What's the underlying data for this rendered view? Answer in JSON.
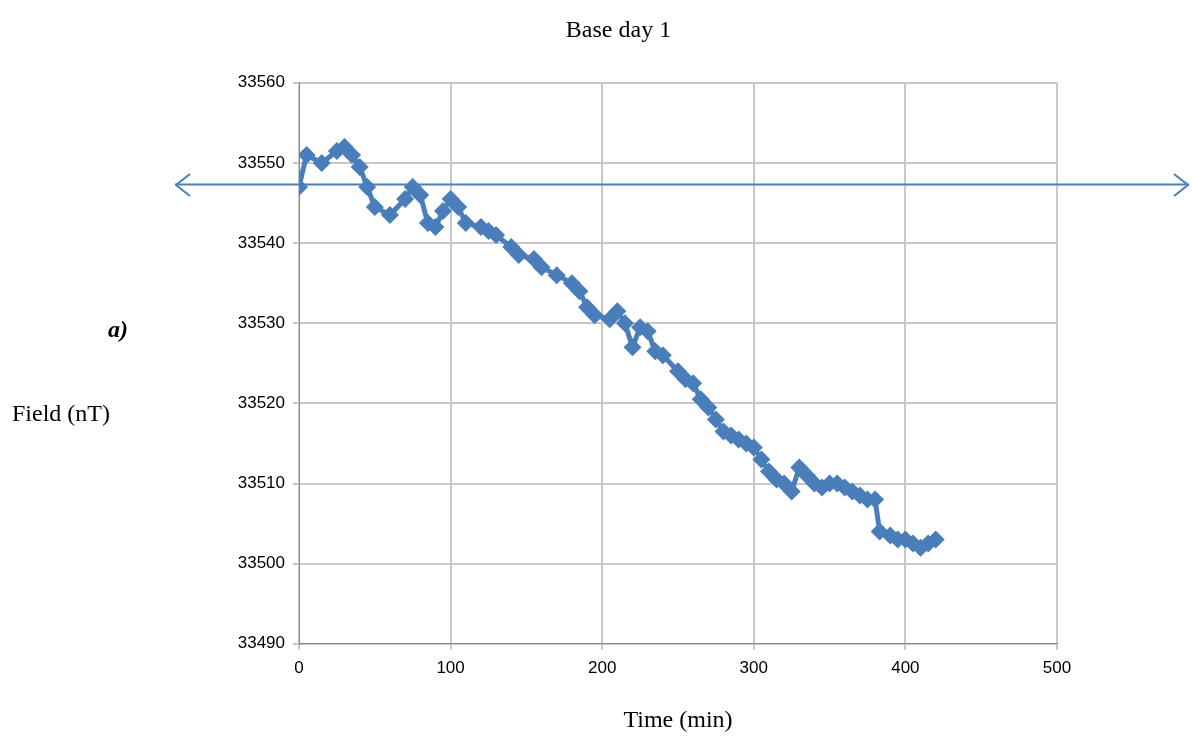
{
  "chart_data": {
    "type": "line",
    "title": "Base day 1",
    "xlabel": "Time (min)",
    "annotations": [
      "a)",
      "Field (nT)"
    ],
    "x": [
      0,
      5,
      15,
      25,
      30,
      35,
      40,
      45,
      50,
      60,
      70,
      75,
      80,
      85,
      90,
      95,
      100,
      105,
      110,
      120,
      125,
      130,
      140,
      145,
      155,
      160,
      170,
      180,
      185,
      190,
      195,
      205,
      210,
      215,
      220,
      225,
      230,
      235,
      240,
      250,
      255,
      260,
      265,
      270,
      275,
      280,
      285,
      290,
      295,
      300,
      305,
      310,
      315,
      320,
      325,
      330,
      335,
      340,
      345,
      350,
      355,
      360,
      365,
      370,
      375,
      380,
      383,
      390,
      395,
      400,
      405,
      410,
      415,
      420
    ],
    "series": [
      {
        "color": "#4a7ebb",
        "values": [
          33547,
          33551,
          33550,
          33551.5,
          33552,
          33551,
          33549.5,
          33547,
          33544.5,
          33543.5,
          33545.5,
          33547,
          33546,
          33542.5,
          33542,
          33544,
          33545.5,
          33544.5,
          33542.5,
          33542,
          33541.5,
          33541,
          33539.5,
          33538.5,
          33538,
          33537,
          33536,
          33535,
          33534,
          33532,
          33531,
          33530.5,
          33531.5,
          33530,
          33527,
          33529.5,
          33529,
          33526.5,
          33526,
          33524,
          33523,
          33522.5,
          33520.5,
          33519.5,
          33518,
          33516.5,
          33516,
          33515.5,
          33515,
          33514.5,
          33513,
          33511.5,
          33510.5,
          33510,
          33509,
          33512,
          33511,
          33510,
          33509.5,
          33510,
          33510,
          33509.5,
          33509,
          33508.5,
          33508,
          33508,
          33504,
          33503.5,
          33503,
          33503,
          33502.5,
          33502,
          33502.5,
          33503
        ]
      }
    ],
    "xlim": [
      0,
      500
    ],
    "xticks": [
      0,
      100,
      200,
      300,
      400,
      500
    ],
    "ylim": [
      33490,
      33560
    ],
    "yticks": [
      33490,
      33500,
      33510,
      33520,
      33530,
      33540,
      33550,
      33560
    ],
    "ref_lines": [
      {
        "axis": "y",
        "value": 33547.3,
        "color": "#4a7ebb"
      }
    ],
    "grid": true,
    "legend": false,
    "marker": "diamond",
    "line_style": "solid"
  }
}
